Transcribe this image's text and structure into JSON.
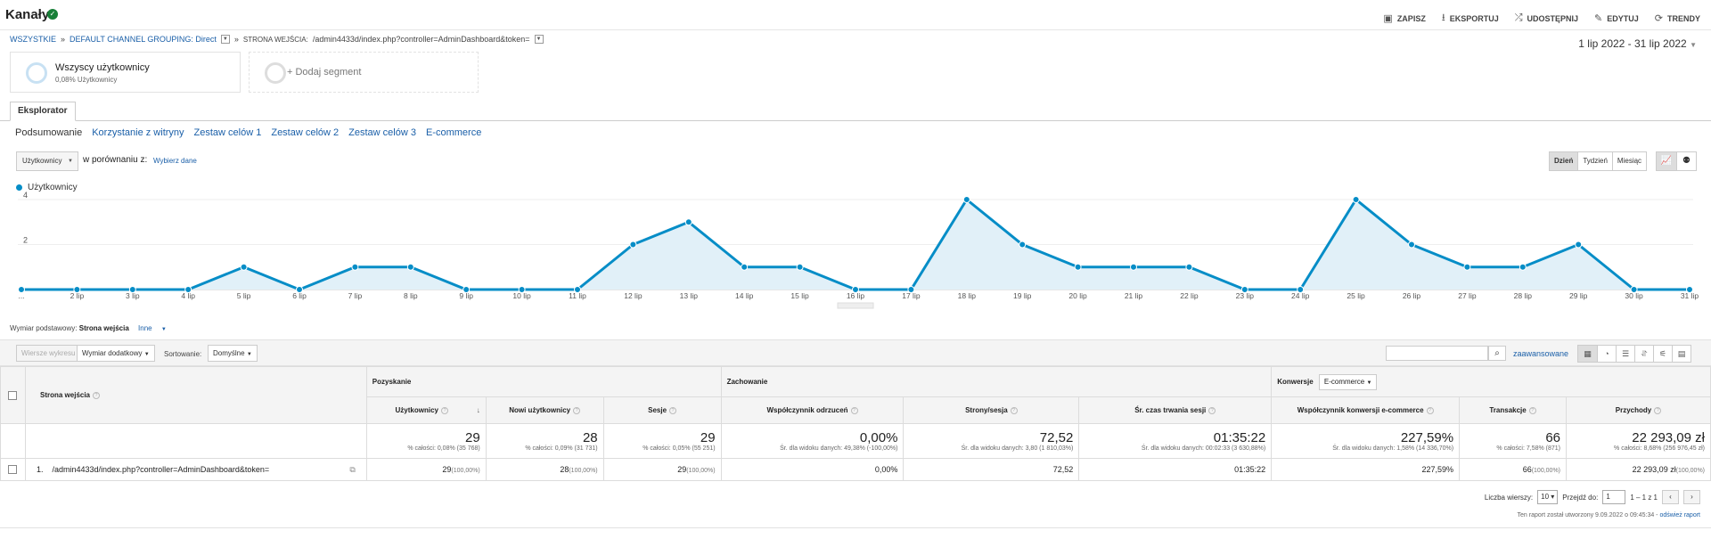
{
  "header": {
    "title": "Kanały",
    "actions": [
      {
        "icon": "save-icon",
        "glyph": "▣",
        "label": "ZAPISZ"
      },
      {
        "icon": "export-icon",
        "glyph": "⭳",
        "label": "EKSPORTUJ"
      },
      {
        "icon": "share-icon",
        "glyph": "⤮",
        "label": "UDOSTĘPNIJ"
      },
      {
        "icon": "edit-icon",
        "glyph": "✎",
        "label": "EDYTUJ"
      },
      {
        "icon": "trends-icon",
        "glyph": "⟳",
        "label": "TRENDY"
      }
    ]
  },
  "breadcrumb": {
    "all": "WSZYSTKIE",
    "sep": "»",
    "grouping": "DEFAULT CHANNEL GROUPING: Direct",
    "entry_label": "STRONA WEJŚCIA:",
    "entry_value": "/admin4433d/index.php?controller=AdminDashboard&token="
  },
  "date_range": "1 lip 2022 - 31 lip 2022",
  "segments": {
    "primary_name": "Wszyscy użytkownicy",
    "primary_sub": "0,08% Użytkownicy",
    "add_label": "+ Dodaj segment"
  },
  "explorer_tab": "Eksplorator",
  "subtabs": [
    "Podsumowanie",
    "Korzystanie z witryny",
    "Zestaw celów 1",
    "Zestaw celów 2",
    "Zestaw celów 3",
    "E-commerce"
  ],
  "metric_selector": {
    "value": "Użytkownicy",
    "compare_label": "w porównaniu z:",
    "compare_link": "Wybierz dane"
  },
  "period_buttons": [
    "Dzień",
    "Tydzień",
    "Miesiąc"
  ],
  "view_buttons": [
    {
      "icon": "line-chart-icon",
      "glyph": "📈"
    },
    {
      "icon": "motion-chart-icon",
      "glyph": "⚉"
    }
  ],
  "chart_data": {
    "type": "area",
    "series": [
      {
        "name": "Użytkownicy",
        "values": [
          0,
          0,
          0,
          0,
          1,
          0,
          1,
          1,
          0,
          0,
          0,
          2,
          3,
          1,
          1,
          0,
          0,
          4,
          2,
          1,
          1,
          1,
          0,
          0,
          4,
          2,
          1,
          1,
          2,
          0,
          0
        ]
      }
    ],
    "categories": [
      "...",
      "2 lip",
      "3 lip",
      "4 lip",
      "5 lip",
      "6 lip",
      "7 lip",
      "8 lip",
      "9 lip",
      "10 lip",
      "11 lip",
      "12 lip",
      "13 lip",
      "14 lip",
      "15 lip",
      "16 lip",
      "17 lip",
      "18 lip",
      "19 lip",
      "20 lip",
      "21 lip",
      "22 lip",
      "23 lip",
      "24 lip",
      "25 lip",
      "26 lip",
      "27 lip",
      "28 lip",
      "29 lip",
      "30 lip",
      "31 lip"
    ],
    "y_ticks": [
      "2",
      "4"
    ],
    "ylim": [
      0,
      4
    ],
    "color": "#058dc7",
    "fill": "#e1f0f8",
    "legend": "top-left"
  },
  "primary_dimension": {
    "label": "Wymiar podstawowy:",
    "value": "Strona wejścia",
    "other": "Inne"
  },
  "toolbar": {
    "plot_rows": "Wiersze wykresu",
    "secondary_dim": "Wymiar dodatkowy",
    "sort_label": "Sortowanie:",
    "sort_value": "Domyślne",
    "advanced": "zaawansowane",
    "grid_icons": [
      {
        "icon": "table-icon",
        "glyph": "▦"
      },
      {
        "icon": "pie-icon",
        "glyph": "◔"
      },
      {
        "icon": "performance-icon",
        "glyph": "☰"
      },
      {
        "icon": "comparison-icon",
        "glyph": "⥯"
      },
      {
        "icon": "term-cloud-icon",
        "glyph": "⚟"
      },
      {
        "icon": "pivot-icon",
        "glyph": "▤"
      }
    ]
  },
  "table": {
    "dimension_header": "Strona wejścia",
    "groups": {
      "acquisition": "Pozyskanie",
      "behavior": "Zachowanie",
      "conversions": "Konwersje",
      "conversions_select": "E-commerce"
    },
    "columns": [
      "Użytkownicy",
      "Nowi użytkownicy",
      "Sesje",
      "Współczynnik odrzuceń",
      "Strony/sesja",
      "Śr. czas trwania sesji",
      "Współczynnik konwersji e-commerce",
      "Transakcje",
      "Przychody"
    ],
    "totals": [
      {
        "value": "29",
        "sub": "% całości: 0,08% (35 768)"
      },
      {
        "value": "28",
        "sub": "% całości: 0,09% (31 731)"
      },
      {
        "value": "29",
        "sub": "% całości: 0,05% (55 251)"
      },
      {
        "value": "0,00%",
        "sub": "Śr. dla widoku danych: 49,38% (-100,00%)"
      },
      {
        "value": "72,52",
        "sub": "Śr. dla widoku danych: 3,80 (1 810,03%)"
      },
      {
        "value": "01:35:22",
        "sub": "Śr. dla widoku danych: 00:02:33 (3 630,88%)"
      },
      {
        "value": "227,59%",
        "sub": "Śr. dla widoku danych: 1,58% (14 336,70%)"
      },
      {
        "value": "66",
        "sub": "% całości: 7,58% (871)"
      },
      {
        "value": "22 293,09 zł",
        "sub": "% całości: 8,68% (256 976,45 zł)"
      }
    ],
    "rows": [
      {
        "index": "1.",
        "page": "/admin4433d/index.php?controller=AdminDashboard&token=",
        "cells": [
          {
            "v": "29",
            "p": "(100,00%)"
          },
          {
            "v": "28",
            "p": "(100,00%)"
          },
          {
            "v": "29",
            "p": "(100,00%)"
          },
          {
            "v": "0,00%",
            "p": ""
          },
          {
            "v": "72,52",
            "p": ""
          },
          {
            "v": "01:35:22",
            "p": ""
          },
          {
            "v": "227,59%",
            "p": ""
          },
          {
            "v": "66",
            "p": "(100,00%)"
          },
          {
            "v": "22 293,09 zł",
            "p": "(100,00%)"
          }
        ]
      }
    ]
  },
  "pager": {
    "rows_label": "Liczba wierszy:",
    "rows_value": "10",
    "goto_label": "Przejdź do:",
    "goto_value": "1",
    "range": "1 – 1 z 1"
  },
  "report_info": {
    "text": "Ten raport został utworzony 9.09.2022 o 09:45:34 -",
    "refresh": "odśwież raport"
  }
}
